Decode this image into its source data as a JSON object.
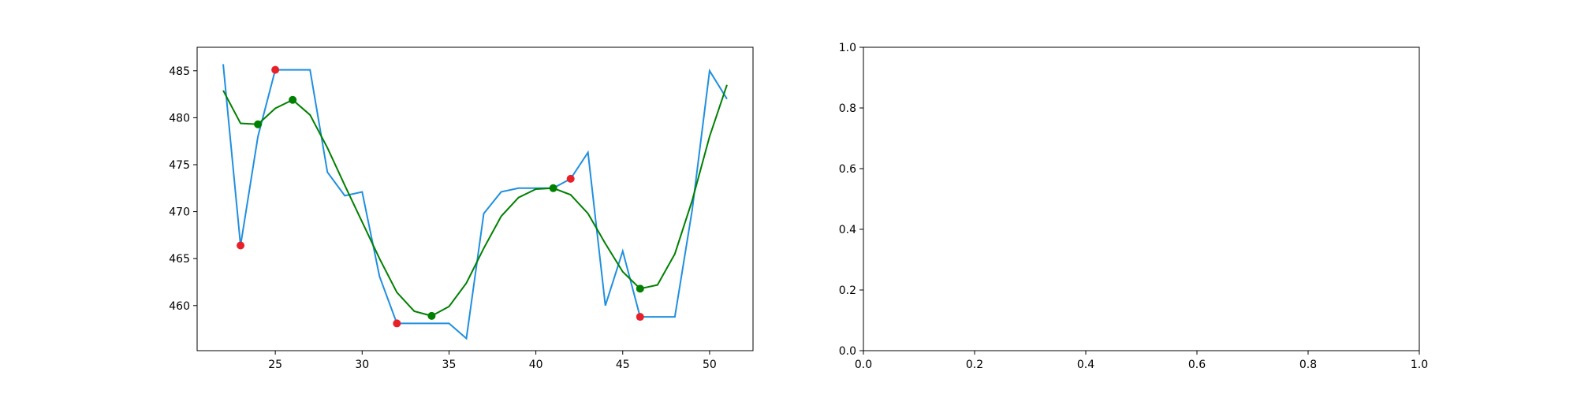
{
  "chart_data": [
    {
      "type": "line",
      "xlim": [
        20.5,
        52.5
      ],
      "ylim": [
        455.2,
        487.5
      ],
      "xticks": [
        25,
        30,
        35,
        40,
        45,
        50
      ],
      "yticks": [
        460,
        465,
        470,
        475,
        480,
        485
      ],
      "series": [
        {
          "color": "#1f8fe0",
          "x": [
            22,
            23,
            24,
            25,
            26,
            27,
            28,
            29,
            30,
            31,
            32,
            33,
            34,
            35,
            36,
            37,
            38,
            39,
            40,
            41,
            42,
            43,
            44,
            45,
            46,
            47,
            48,
            49,
            50,
            51
          ],
          "y": [
            485.7,
            466.4,
            478.0,
            485.1,
            485.1,
            485.1,
            474.2,
            471.7,
            472.1,
            463.1,
            458.1,
            458.1,
            458.1,
            458.1,
            456.5,
            469.8,
            472.1,
            472.5,
            472.5,
            472.5,
            473.5,
            476.3,
            460.0,
            465.8,
            458.8,
            458.8,
            458.8,
            470.2,
            485.0,
            482.0
          ]
        },
        {
          "color": "#008000",
          "x": [
            22,
            23,
            24,
            25,
            26,
            27,
            28,
            29,
            30,
            31,
            32,
            33,
            34,
            35,
            36,
            37,
            38,
            39,
            40,
            41,
            42,
            43,
            44,
            45,
            46,
            47,
            48,
            49,
            50,
            51
          ],
          "y": [
            482.9,
            479.4,
            479.3,
            481.0,
            481.9,
            480.3,
            476.8,
            472.8,
            468.9,
            465.0,
            461.4,
            459.4,
            458.9,
            459.9,
            462.4,
            466.1,
            469.5,
            471.5,
            472.4,
            472.5,
            471.8,
            469.8,
            466.6,
            463.6,
            461.8,
            462.2,
            465.5,
            471.2,
            478.0,
            483.5
          ]
        }
      ],
      "markers": [
        {
          "color": "#e8202a",
          "x": [
            23,
            25,
            32,
            42,
            46
          ],
          "y": [
            466.4,
            485.1,
            458.1,
            473.5,
            458.8
          ]
        },
        {
          "color": "#008000",
          "x": [
            24,
            26,
            34,
            41,
            46
          ],
          "y": [
            479.3,
            481.9,
            458.9,
            472.5,
            461.8
          ]
        }
      ]
    },
    {
      "type": "line",
      "xlim": [
        0,
        1
      ],
      "ylim": [
        0,
        1
      ],
      "xticks": [
        0.0,
        0.2,
        0.4,
        0.6,
        0.8,
        1.0
      ],
      "yticks": [
        0.0,
        0.2,
        0.4,
        0.6,
        0.8,
        1.0
      ],
      "tick_format": "0.0",
      "series": []
    }
  ]
}
